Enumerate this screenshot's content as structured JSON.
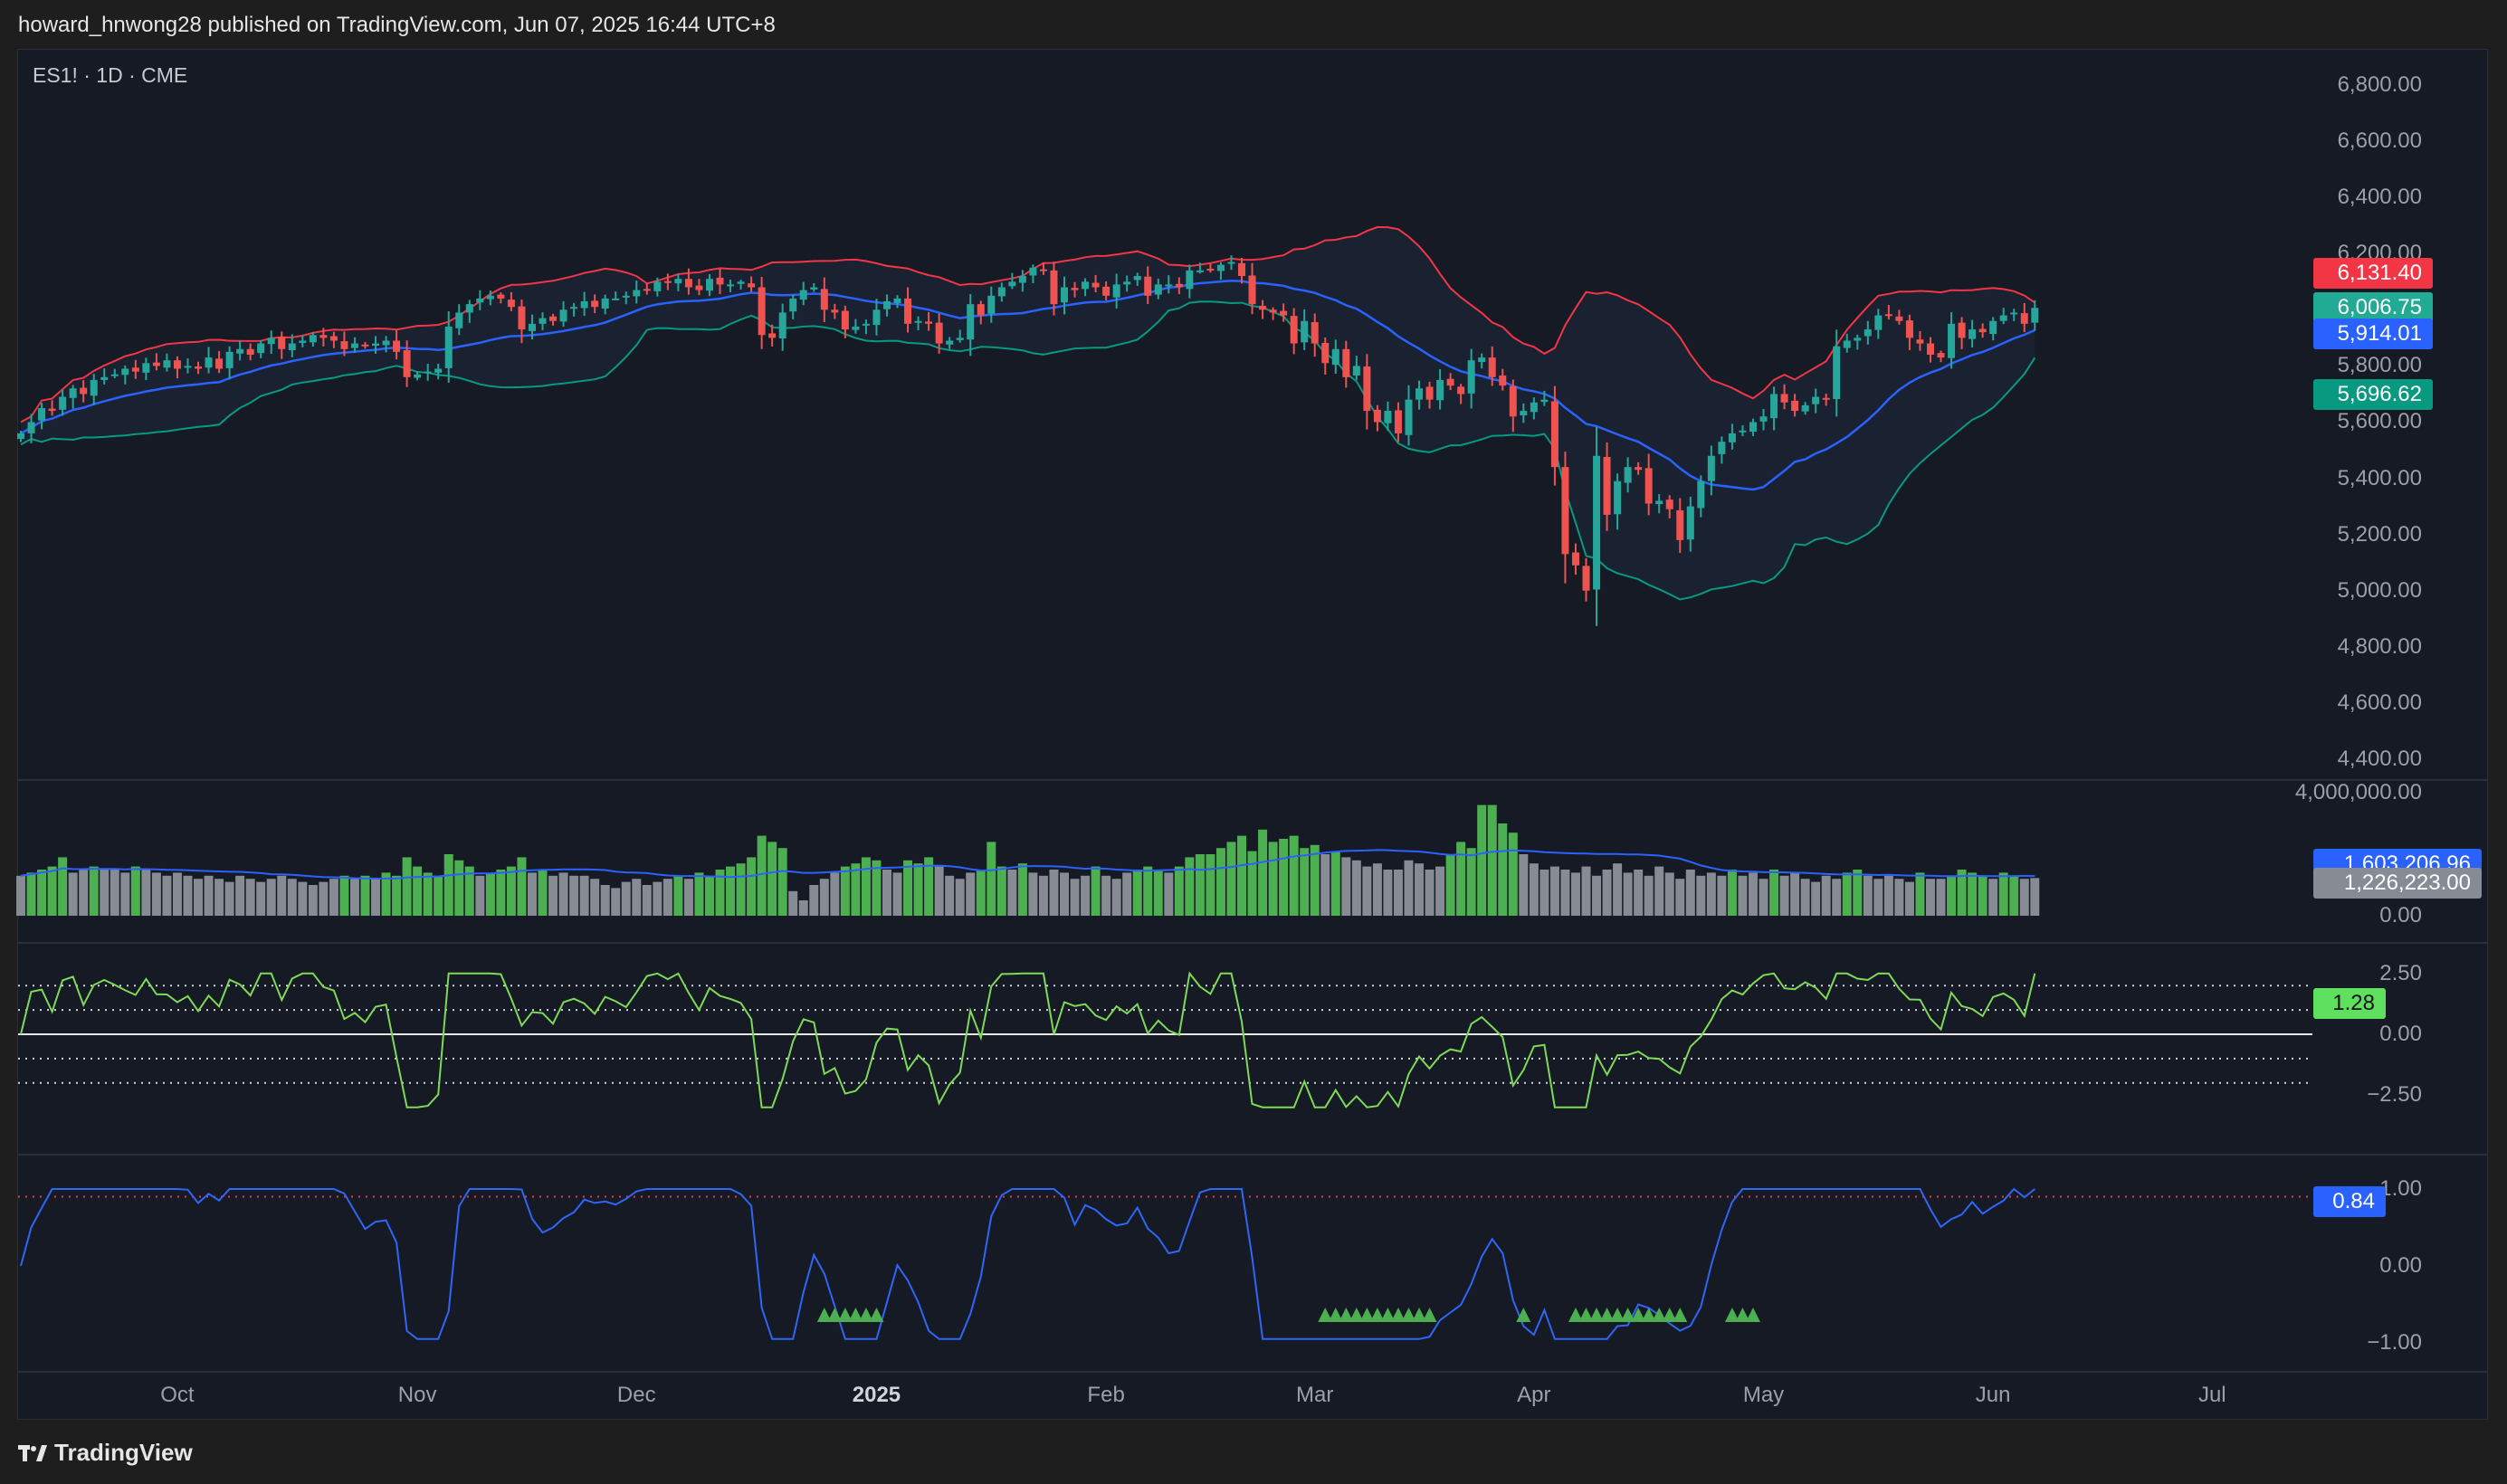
{
  "header": {
    "publisher_line": "howard_hnwong28 published on TradingView.com, Jun 07, 2025 16:44 UTC+8"
  },
  "symbol_legend": "ES1! · 1D · CME",
  "footer": {
    "brand": "TradingView"
  },
  "colors": {
    "bull": "#26a69a",
    "bear": "#ef5350",
    "bb_upper": "#f23645",
    "bb_basis": "#2962ff",
    "bb_lower": "#089981",
    "volume_up": "#4caf50",
    "volume_down": "#878b94",
    "volume_ma": "#2962ff",
    "oscillator": "#7ed957",
    "signal": "#2f66f5",
    "marker": "#4caf50",
    "badge_close": "#22ab94",
    "badge_osc": "#5ee05e",
    "badge_volume": "#878b94"
  },
  "chart_data": {
    "type": "candlestick",
    "symbol": "ES1!",
    "interval": "1D",
    "exchange": "CME",
    "closes": [
      5560,
      5600,
      5650,
      5640,
      5690,
      5720,
      5700,
      5750,
      5760,
      5770,
      5790,
      5780,
      5810,
      5800,
      5820,
      5790,
      5800,
      5790,
      5830,
      5790,
      5850,
      5860,
      5840,
      5880,
      5900,
      5860,
      5880,
      5890,
      5910,
      5900,
      5890,
      5860,
      5880,
      5870,
      5880,
      5890,
      5850,
      5760,
      5770,
      5780,
      5790,
      5940,
      5990,
      6020,
      6040,
      6050,
      6040,
      6010,
      5930,
      5950,
      5970,
      5960,
      6000,
      6010,
      6030,
      6010,
      6040,
      6040,
      6050,
      6070,
      6070,
      6100,
      6100,
      6110,
      6080,
      6070,
      6110,
      6090,
      6090,
      6100,
      6080,
      5910,
      5900,
      5990,
      6040,
      6070,
      6080,
      6000,
      5990,
      5930,
      5940,
      5950,
      6000,
      6030,
      6040,
      5950,
      5960,
      5950,
      5880,
      5890,
      5900,
      6020,
      5980,
      6050,
      6080,
      6100,
      6120,
      6150,
      6140,
      6020,
      6080,
      6070,
      6100,
      6080,
      6050,
      6090,
      6100,
      6120,
      6050,
      6090,
      6090,
      6080,
      6140,
      6140,
      6140,
      6160,
      6170,
      6120,
      6020,
      6000,
      5990,
      5980,
      5880,
      5960,
      5880,
      5810,
      5860,
      5760,
      5800,
      5640,
      5600,
      5640,
      5560,
      5680,
      5720,
      5680,
      5750,
      5730,
      5700,
      5820,
      5830,
      5760,
      5730,
      5620,
      5640,
      5670,
      5680,
      5440,
      5130,
      5090,
      5000,
      5480,
      5270,
      5390,
      5440,
      5430,
      5310,
      5320,
      5290,
      5180,
      5300,
      5390,
      5480,
      5530,
      5560,
      5570,
      5600,
      5620,
      5700,
      5670,
      5640,
      5660,
      5690,
      5680,
      5870,
      5890,
      5900,
      5930,
      5980,
      5980,
      5960,
      5900,
      5880,
      5840,
      5830,
      5950,
      5900,
      5930,
      5920,
      5960,
      5980,
      5990,
      5950,
      6006.75
    ],
    "volume_millions": [
      1.3,
      1.4,
      1.5,
      1.6,
      1.9,
      1.4,
      1.5,
      1.6,
      1.5,
      1.5,
      1.4,
      1.6,
      1.5,
      1.4,
      1.3,
      1.4,
      1.3,
      1.2,
      1.3,
      1.2,
      1.1,
      1.3,
      1.2,
      1.1,
      1.2,
      1.3,
      1.2,
      1.1,
      1.0,
      1.1,
      1.2,
      1.3,
      1.2,
      1.3,
      1.2,
      1.4,
      1.3,
      1.9,
      1.6,
      1.4,
      1.3,
      2.0,
      1.8,
      1.6,
      1.3,
      1.4,
      1.5,
      1.6,
      1.9,
      1.4,
      1.5,
      1.3,
      1.4,
      1.3,
      1.3,
      1.2,
      1.0,
      0.9,
      1.1,
      1.2,
      1.0,
      1.1,
      1.2,
      1.3,
      1.2,
      1.4,
      1.3,
      1.5,
      1.6,
      1.7,
      1.9,
      2.6,
      2.4,
      2.2,
      0.8,
      0.5,
      1.0,
      1.2,
      1.4,
      1.6,
      1.7,
      1.9,
      1.8,
      1.5,
      1.4,
      1.8,
      1.7,
      1.9,
      1.6,
      1.3,
      1.2,
      1.4,
      1.5,
      2.4,
      1.6,
      1.5,
      1.7,
      1.4,
      1.3,
      1.5,
      1.4,
      1.2,
      1.3,
      1.6,
      1.3,
      1.2,
      1.4,
      1.5,
      1.6,
      1.5,
      1.4,
      1.6,
      1.9,
      2.0,
      2.0,
      2.2,
      2.4,
      2.6,
      2.1,
      2.8,
      2.4,
      2.5,
      2.6,
      2.2,
      2.3,
      2.0,
      2.1,
      1.9,
      1.8,
      1.6,
      1.7,
      1.5,
      1.5,
      1.8,
      1.7,
      1.5,
      1.6,
      2.0,
      2.4,
      2.2,
      3.6,
      3.6,
      3.0,
      2.7,
      2.0,
      1.7,
      1.5,
      1.6,
      1.5,
      1.4,
      1.6,
      1.3,
      1.5,
      1.7,
      1.4,
      1.5,
      1.3,
      1.6,
      1.4,
      1.2,
      1.5,
      1.3,
      1.4,
      1.3,
      1.5,
      1.3,
      1.4,
      1.2,
      1.5,
      1.3,
      1.4,
      1.2,
      1.1,
      1.3,
      1.2,
      1.4,
      1.5,
      1.3,
      1.2,
      1.3,
      1.2,
      1.1,
      1.4,
      1.2,
      1.2,
      1.3,
      1.5,
      1.4,
      1.3,
      1.2,
      1.4,
      1.3,
      1.2,
      1.226
    ],
    "signal_marker_bar_indices": [
      77,
      78,
      79,
      80,
      81,
      82,
      125,
      126,
      127,
      128,
      129,
      130,
      131,
      132,
      133,
      134,
      135,
      144,
      149,
      150,
      151,
      152,
      153,
      154,
      155,
      156,
      157,
      158,
      159,
      164,
      165,
      166
    ],
    "price_axis": {
      "values": [
        6800,
        6600,
        6400,
        6200,
        6000,
        5800,
        5600,
        5400,
        5200,
        5000,
        4800,
        4600,
        4400
      ],
      "labels": [
        "6,800.00",
        "6,600.00",
        "6,400.00",
        "6,200.00",
        "6,000.00",
        "5,800.00",
        "5,600.00",
        "5,400.00",
        "5,200.00",
        "5,000.00",
        "4,800.00",
        "4,600.00",
        "4,400.00"
      ]
    },
    "volume_axis": {
      "values": [
        4,
        0
      ],
      "labels": [
        "4,000,000.00",
        "0.00"
      ]
    },
    "oscillator_axis": {
      "values": [
        2.5,
        0,
        -2.5
      ],
      "labels": [
        "2.50",
        "0.00",
        "−2.50"
      ],
      "guide_levels": [
        2,
        1,
        -1,
        -2
      ]
    },
    "signal_axis": {
      "values": [
        1,
        0,
        -1
      ],
      "labels": [
        "1.00",
        "0.00",
        "−1.00"
      ],
      "threshold": 0.9
    },
    "time_axis": [
      {
        "label": "Oct",
        "bar_index": 15
      },
      {
        "label": "Nov",
        "bar_index": 38
      },
      {
        "label": "Dec",
        "bar_index": 59
      },
      {
        "label": "2025",
        "bar_index": 82,
        "year": true
      },
      {
        "label": "Feb",
        "bar_index": 104
      },
      {
        "label": "Mar",
        "bar_index": 124
      },
      {
        "label": "Apr",
        "bar_index": 145
      },
      {
        "label": "May",
        "bar_index": 167
      },
      {
        "label": "Jun",
        "bar_index": 189
      },
      {
        "label": "Jul",
        "bar_index": 210
      }
    ],
    "last_values": {
      "bb_upper": "6,131.40",
      "close": "6,006.75",
      "bb_basis": "5,914.01",
      "bb_lower": "5,696.62",
      "volume_ma": "1,603,206.96",
      "volume": "1,226,223.00",
      "oscillator": "1.28",
      "signal": "0.84"
    }
  }
}
